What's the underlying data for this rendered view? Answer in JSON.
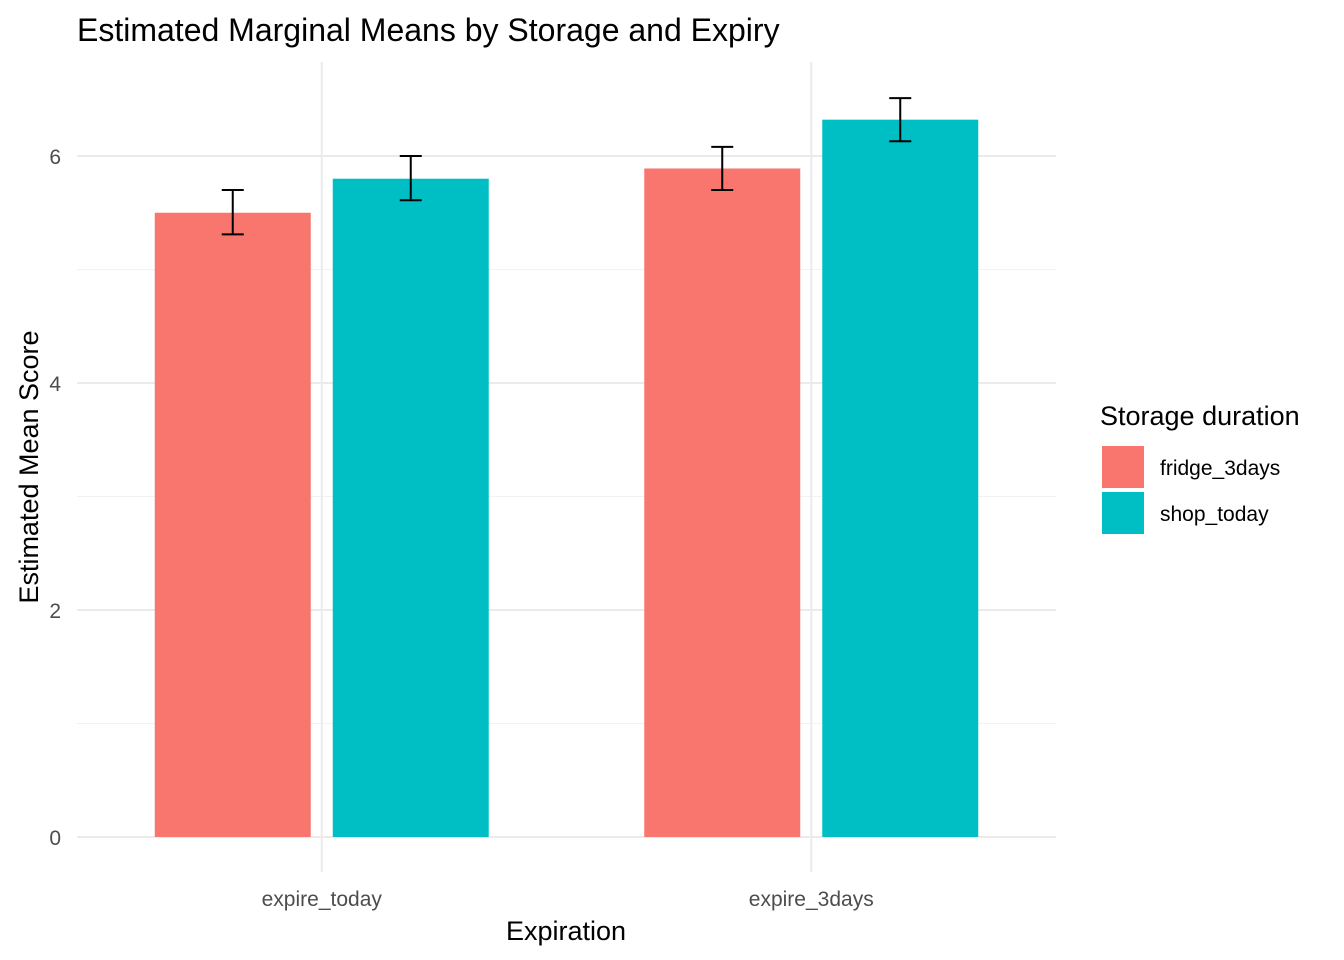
{
  "chart_data": {
    "type": "bar",
    "title": "Estimated Marginal Means by Storage and Expiry",
    "xlabel": "Expiration",
    "ylabel": "Estimated Mean Score",
    "categories": [
      "expire_today",
      "expire_3days"
    ],
    "series": [
      {
        "name": "fridge_3days",
        "color": "#F8766D",
        "values": [
          5.5,
          5.89
        ],
        "lower": [
          5.31,
          5.7
        ],
        "upper": [
          5.7,
          6.08
        ]
      },
      {
        "name": "shop_today",
        "color": "#00BFC4",
        "values": [
          5.8,
          6.32
        ],
        "lower": [
          5.61,
          6.13
        ],
        "upper": [
          6.0,
          6.51
        ]
      }
    ],
    "ylim": [
      -0.3,
      6.75
    ],
    "yticks": [
      0,
      2,
      4,
      6
    ],
    "grid": true,
    "legend": {
      "title": "Storage duration",
      "position": "right"
    }
  }
}
